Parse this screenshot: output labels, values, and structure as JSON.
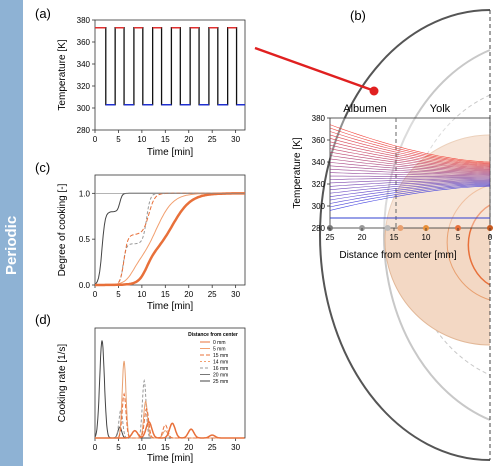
{
  "sidebar": {
    "label": "Periodic",
    "color": "#8eb2d4"
  },
  "panel_labels": {
    "a": "(a)",
    "b": "(b)",
    "c": "(c)",
    "d": "(d)"
  },
  "colors": {
    "hot": "#e03030",
    "cold": "#2030d0",
    "orange": "#e8703a",
    "yolk_fill": "#f3d8c4",
    "gray_dark": "#555555",
    "gray_mid": "#9a9a9a",
    "gray_light": "#c8c8c8",
    "arrow": "#e02020"
  },
  "chart_data": [
    {
      "id": "a",
      "type": "line",
      "xlabel": "Time [min]",
      "ylabel": "Temperature [K]",
      "xlim": [
        0,
        32
      ],
      "ylim": [
        280,
        380
      ],
      "xticks": [
        0,
        5,
        10,
        15,
        20,
        25,
        30
      ],
      "yticks": [
        280,
        300,
        320,
        340,
        360,
        380
      ],
      "series": [
        {
          "style": "square-wave",
          "high": 373,
          "low": 303,
          "edges": [
            0,
            2.3,
            4.3,
            6.2,
            8.3,
            10.2,
            12.3,
            14.2,
            16.3,
            18.2,
            20.3,
            22.2,
            24.3,
            26.2,
            28.3,
            30.2,
            32
          ]
        }
      ]
    },
    {
      "id": "b",
      "type": "line",
      "xlabel": "Distance from center [mm]",
      "ylabel": "Temperature [K]",
      "xlim": [
        25,
        0
      ],
      "ylim": [
        280,
        380
      ],
      "xticks": [
        25,
        20,
        15,
        10,
        5,
        0
      ],
      "yticks": [
        280,
        300,
        320,
        340,
        360,
        380
      ],
      "region_labels": [
        "Albumen",
        "Yolk"
      ],
      "boundary_x": 15,
      "grid": false
    },
    {
      "id": "c",
      "type": "line",
      "xlabel": "Time [min]",
      "ylabel": "Degree of cooking [-]",
      "xlim": [
        0,
        32
      ],
      "ylim": [
        0,
        1.2
      ],
      "xticks": [
        0,
        5,
        10,
        15,
        20,
        25,
        30
      ],
      "yticks": [
        0.0,
        0.5,
        1.0
      ],
      "ytick_labels": [
        "0.0",
        "0.5",
        "1.0"
      ]
    },
    {
      "id": "d",
      "type": "line",
      "xlabel": "Time [min]",
      "ylabel": "Cooking rate [1/s]",
      "xlim": [
        0,
        32
      ],
      "ylim": [
        0,
        1.5
      ],
      "xticks": [
        0,
        5,
        10,
        15,
        20,
        25,
        30
      ],
      "legend_title": "Distance from center",
      "legend_position": "top-right",
      "series": [
        {
          "name": "0 mm",
          "color": "#e8703a",
          "dash": ""
        },
        {
          "name": "5 mm",
          "color": "#f2a070",
          "dash": ""
        },
        {
          "name": "15 mm",
          "color": "#e8703a",
          "dash": "4,2"
        },
        {
          "name": "14 mm",
          "color": "#f2a070",
          "dash": "2,2"
        },
        {
          "name": "16 mm",
          "color": "#999999",
          "dash": "3,2"
        },
        {
          "name": "20 mm",
          "color": "#777777",
          "dash": ""
        },
        {
          "name": "25 mm",
          "color": "#444444",
          "dash": ""
        }
      ]
    }
  ]
}
